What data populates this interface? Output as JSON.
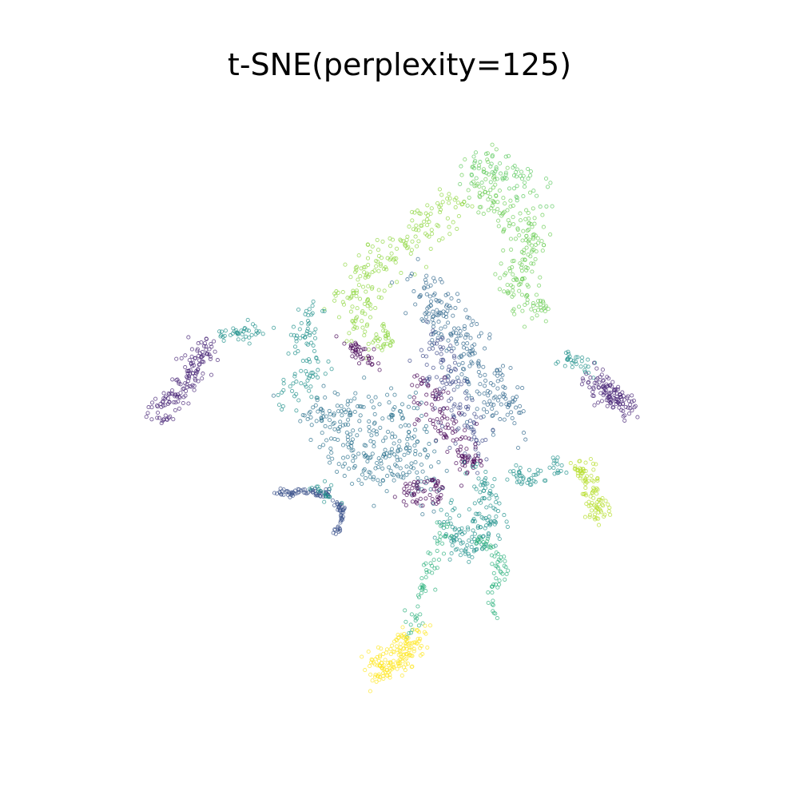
{
  "chart_data": {
    "type": "scatter",
    "title": "t-SNE(perplexity=125)",
    "xlabel": "",
    "ylabel": "",
    "axes_visible": false,
    "grid": false,
    "legend": "none",
    "marker": "open circle",
    "colormap": "viridis",
    "colors": {
      "dark_purple": "#440154",
      "indigo": "#3b528b",
      "steel_blue": "#31688e",
      "teal": "#21918c",
      "green_teal": "#35b779",
      "green": "#6ece58",
      "light_green": "#90d743",
      "lime": "#b5de2b",
      "yellow": "#fde725"
    },
    "xlim": [
      -100,
      100
    ],
    "ylim": [
      -100,
      100
    ],
    "clusters": [
      {
        "name": "",
        "color": "#6ece58",
        "path": [
          [
            25,
            77
          ],
          [
            22,
            70
          ],
          [
            26,
            63
          ],
          [
            32,
            60
          ],
          [
            39,
            56
          ],
          [
            42,
            50
          ],
          [
            36,
            44
          ],
          [
            33,
            38
          ],
          [
            38,
            32
          ],
          [
            44,
            28
          ]
        ],
        "spread": 3.2,
        "count": 220
      },
      {
        "name": "",
        "color": "#5ec962",
        "path": [
          [
            42,
            66
          ],
          [
            36,
            72
          ],
          [
            28,
            76
          ],
          [
            20,
            74
          ]
        ],
        "spread": 2.5,
        "count": 70
      },
      {
        "name": "",
        "color": "#90d743",
        "path": [
          [
            16,
            64
          ],
          [
            6,
            57
          ],
          [
            -4,
            48
          ],
          [
            -14,
            40
          ],
          [
            -20,
            33
          ],
          [
            -15,
            23
          ]
        ],
        "spread": 3.6,
        "count": 200
      },
      {
        "name": "",
        "color": "#8fd744",
        "path": [
          [
            -7,
            22
          ],
          [
            -11,
            17
          ]
        ],
        "spread": 2.0,
        "count": 30
      },
      {
        "name": "",
        "color": "#31688e",
        "path": [
          [
            2,
            38
          ],
          [
            8,
            30
          ],
          [
            14,
            22
          ],
          [
            22,
            12
          ],
          [
            28,
            2
          ],
          [
            30,
            -6
          ]
        ],
        "spread": 4.2,
        "count": 240
      },
      {
        "name": "",
        "color": "#3e4989",
        "path": [
          [
            9,
            20
          ],
          [
            10,
            8
          ],
          [
            14,
            -2
          ],
          [
            20,
            -10
          ],
          [
            22,
            -18
          ]
        ],
        "spread": 3.2,
        "count": 120
      },
      {
        "name": "",
        "color": "#440154",
        "path": [
          [
            4,
            8
          ],
          [
            8,
            -2
          ],
          [
            12,
            -10
          ],
          [
            18,
            -16
          ],
          [
            20,
            -22
          ]
        ],
        "spread": 2.8,
        "count": 120
      },
      {
        "name": "",
        "color": "#2c728e",
        "path": [
          [
            -33,
            -6
          ],
          [
            -20,
            -3
          ],
          [
            -6,
            -6
          ],
          [
            2,
            -18
          ],
          [
            8,
            -28
          ],
          [
            -15,
            -18
          ],
          [
            -25,
            -12
          ],
          [
            -10,
            -24
          ]
        ],
        "spread": 4.5,
        "count": 300
      },
      {
        "name": "",
        "color": "#440154",
        "path": [
          [
            -2,
            -28
          ],
          [
            2,
            -32
          ],
          [
            8,
            -26
          ]
        ],
        "spread": 1.8,
        "count": 40
      },
      {
        "name": "",
        "color": "#21918c",
        "path": [
          [
            -30,
            30
          ],
          [
            -34,
            22
          ],
          [
            -32,
            12
          ],
          [
            -36,
            4
          ],
          [
            -40,
            0
          ]
        ],
        "spread": 2.6,
        "count": 90
      },
      {
        "name": "",
        "color": "#440154",
        "path": [
          [
            -20,
            18
          ],
          [
            -14,
            15
          ],
          [
            -10,
            12
          ]
        ],
        "spread": 1.8,
        "count": 40
      },
      {
        "name": "",
        "color": "#21918c",
        "path": [
          [
            -47,
            23
          ],
          [
            -52,
            22
          ],
          [
            -62,
            21
          ]
        ],
        "spread": 1.5,
        "count": 40
      },
      {
        "name": "",
        "color": "#482677",
        "path": [
          [
            -65,
            18
          ],
          [
            -70,
            10
          ],
          [
            -74,
            2
          ],
          [
            -78,
            -2
          ],
          [
            -82,
            -4
          ]
        ],
        "spread": 2.3,
        "count": 150
      },
      {
        "name": "",
        "color": "#21918c",
        "path": [
          [
            48,
            14
          ],
          [
            54,
            12
          ],
          [
            58,
            8
          ]
        ],
        "spread": 1.5,
        "count": 30
      },
      {
        "name": "",
        "color": "#482677",
        "path": [
          [
            60,
            6
          ],
          [
            64,
            2
          ],
          [
            68,
            0
          ],
          [
            70,
            -2
          ]
        ],
        "spread": 2.2,
        "count": 120
      },
      {
        "name": "",
        "color": "#21918c",
        "path": [
          [
            20,
            -24
          ],
          [
            24,
            -28
          ],
          [
            26,
            -34
          ],
          [
            26,
            -40
          ],
          [
            22,
            -45
          ],
          [
            18,
            -48
          ],
          [
            14,
            -42
          ],
          [
            12,
            -36
          ]
        ],
        "spread": 2.6,
        "count": 160
      },
      {
        "name": "",
        "color": "#2db27d",
        "path": [
          [
            22,
            -45
          ],
          [
            28,
            -50
          ],
          [
            30,
            -56
          ],
          [
            28,
            -62
          ],
          [
            27,
            -70
          ]
        ],
        "spread": 1.2,
        "count": 60
      },
      {
        "name": "",
        "color": "#2db27d",
        "path": [
          [
            12,
            -40
          ],
          [
            10,
            -46
          ],
          [
            6,
            -54
          ],
          [
            4,
            -62
          ],
          [
            2,
            -70
          ],
          [
            0,
            -76
          ]
        ],
        "spread": 1.2,
        "count": 60
      },
      {
        "name": "",
        "color": "#440154",
        "path": [
          [
            9,
            -26
          ],
          [
            9,
            -34
          ]
        ],
        "spread": 1.0,
        "count": 20
      },
      {
        "name": "",
        "color": "#fde725",
        "path": [
          [
            3,
            -76
          ],
          [
            -3,
            -82
          ],
          [
            -8,
            -86
          ],
          [
            -12,
            -88
          ]
        ],
        "spread": 2.6,
        "count": 160
      },
      {
        "name": "",
        "color": "#3b528b",
        "path": [
          [
            -43,
            -30
          ],
          [
            -38,
            -30
          ],
          [
            -32,
            -29
          ],
          [
            -25,
            -31
          ],
          [
            -22,
            -35
          ],
          [
            -22,
            -40
          ],
          [
            -25,
            -44
          ]
        ],
        "spread": 0.6,
        "count": 110
      },
      {
        "name": "",
        "color": "#21918c",
        "path": [
          [
            -30,
            -29
          ],
          [
            -26,
            -30
          ]
        ],
        "spread": 1.6,
        "count": 20
      },
      {
        "name": "",
        "color": "#21918c",
        "path": [
          [
            33,
            -23
          ],
          [
            37,
            -26
          ],
          [
            42,
            -25
          ],
          [
            46,
            -22
          ],
          [
            50,
            -22
          ]
        ],
        "spread": 1.3,
        "count": 50
      },
      {
        "name": "",
        "color": "#b5de2b",
        "path": [
          [
            53,
            -21
          ],
          [
            57,
            -24
          ],
          [
            59,
            -30
          ],
          [
            61,
            -36
          ],
          [
            62,
            -38
          ]
        ],
        "spread": 1.8,
        "count": 100
      }
    ]
  }
}
